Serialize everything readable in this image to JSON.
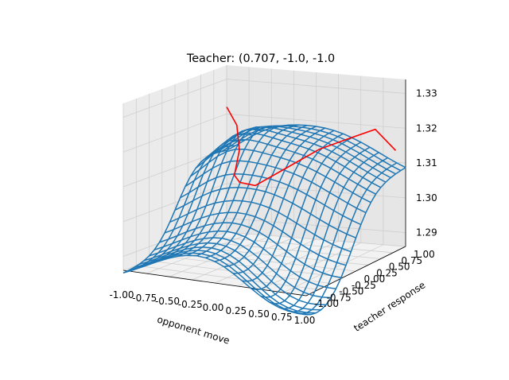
{
  "chart_data": {
    "type": "surface-wireframe-3d",
    "title": "Teacher: (0.707, -1.0, -1.0",
    "xlabel": "opponent move",
    "ylabel": "teacher response",
    "zlabel": "",
    "x_ticks": [
      "-1.00",
      "-0.75",
      "-0.50",
      "-0.25",
      "0.00",
      "0.25",
      "0.50",
      "0.75",
      "1.00"
    ],
    "y_ticks": [
      "-1.00",
      "-0.75",
      "-0.50",
      "-0.25",
      "0.00",
      "0.25",
      "0.50",
      "0.75",
      "1.00"
    ],
    "z_ticks": [
      "1.29",
      "1.30",
      "1.31",
      "1.32",
      "1.33"
    ],
    "xlim": [
      -1.0,
      1.0
    ],
    "ylim": [
      -1.0,
      1.0
    ],
    "zlim": [
      1.286,
      1.334
    ],
    "grid": true,
    "wireframe_color": "#1f77b4",
    "curve_color": "#ff0000",
    "surface_resolution": 20,
    "best_response_curve": {
      "x": [
        -1.0,
        -0.8,
        -0.6,
        -0.4,
        -0.2,
        0.0,
        0.2,
        0.4,
        0.6,
        0.8,
        1.0
      ],
      "y": [
        1.0,
        0.85,
        0.55,
        0.1,
        -0.15,
        -0.2,
        0.05,
        0.35,
        0.6,
        0.75,
        0.8
      ],
      "z": [
        1.322,
        1.318,
        1.313,
        1.309,
        1.309,
        1.309,
        1.313,
        1.317,
        1.319,
        1.321,
        1.315
      ]
    }
  }
}
